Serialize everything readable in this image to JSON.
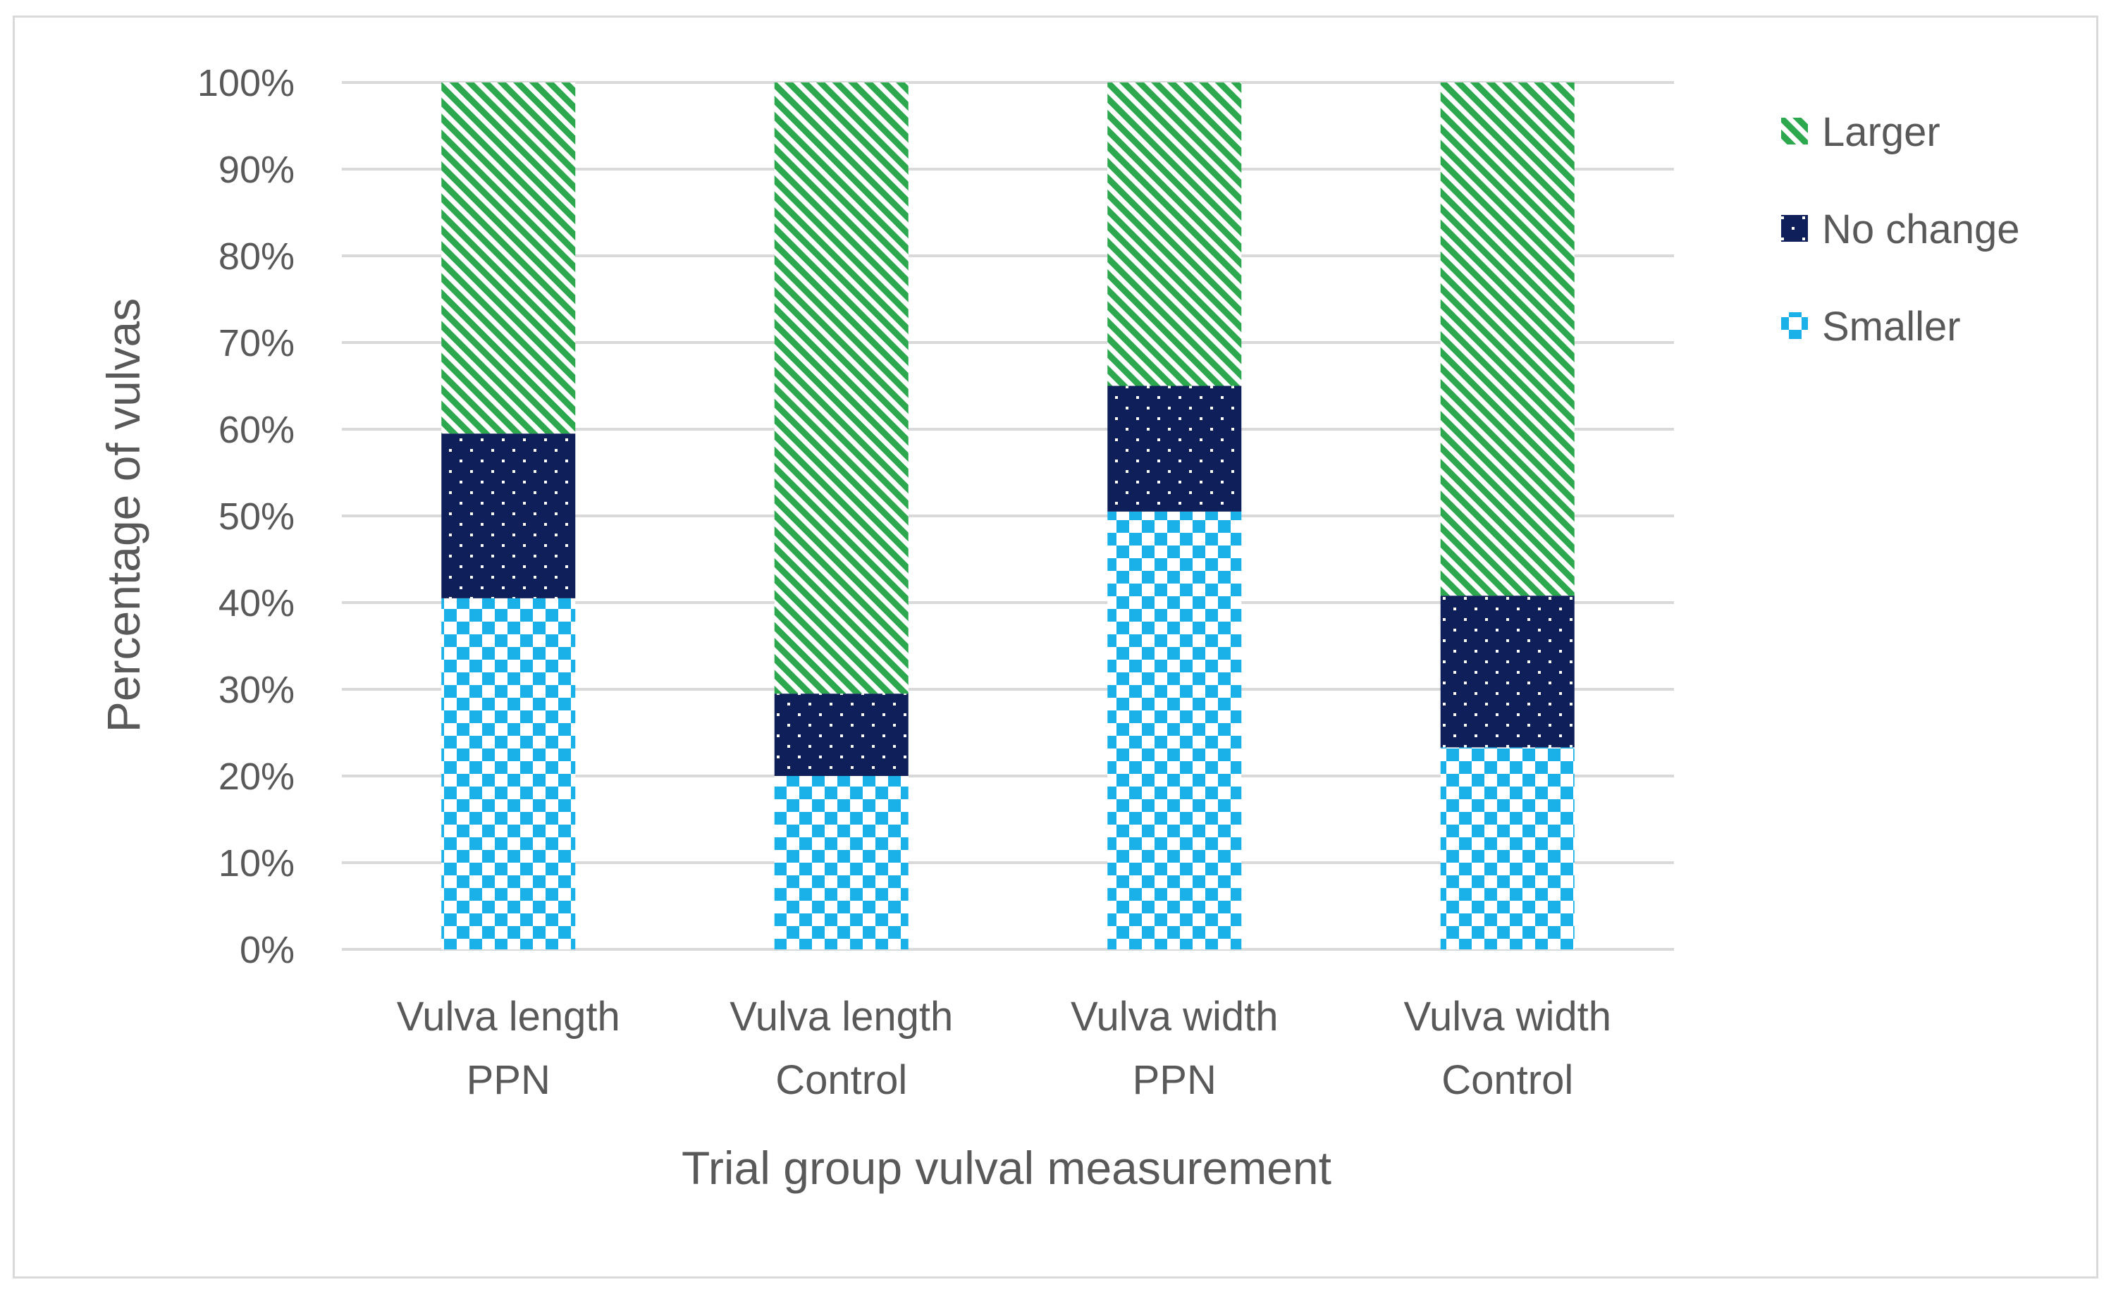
{
  "chart_data": {
    "type": "bar",
    "stacked": true,
    "percent_stacked": true,
    "title": "",
    "xlabel": "Trial group vulval measurement",
    "ylabel": "Percentage of vulvas",
    "ylim": [
      0,
      100
    ],
    "y_ticks": [
      "0%",
      "10%",
      "20%",
      "30%",
      "40%",
      "50%",
      "60%",
      "70%",
      "80%",
      "90%",
      "100%"
    ],
    "grid": true,
    "legend_position": "right-top",
    "categories": [
      [
        "Vulva length",
        "PPN"
      ],
      [
        "Vulva length",
        "Control"
      ],
      [
        "Vulva width",
        "PPN"
      ],
      [
        "Vulva width",
        "Control"
      ]
    ],
    "series": [
      {
        "name": "Smaller",
        "color": "#1ab0e8",
        "pattern": "checkerboard",
        "values": [
          40.5,
          20,
          50.5,
          23.3
        ]
      },
      {
        "name": "No change",
        "color": "#0e1f5a",
        "pattern": "dotted",
        "values": [
          19,
          9.5,
          14.5,
          17.5
        ]
      },
      {
        "name": "Larger",
        "color": "#2ea84f",
        "pattern": "diagonal-stripes",
        "values": [
          40.5,
          70.5,
          35,
          59.2
        ]
      }
    ],
    "legend_order": [
      "Larger",
      "No change",
      "Smaller"
    ]
  }
}
